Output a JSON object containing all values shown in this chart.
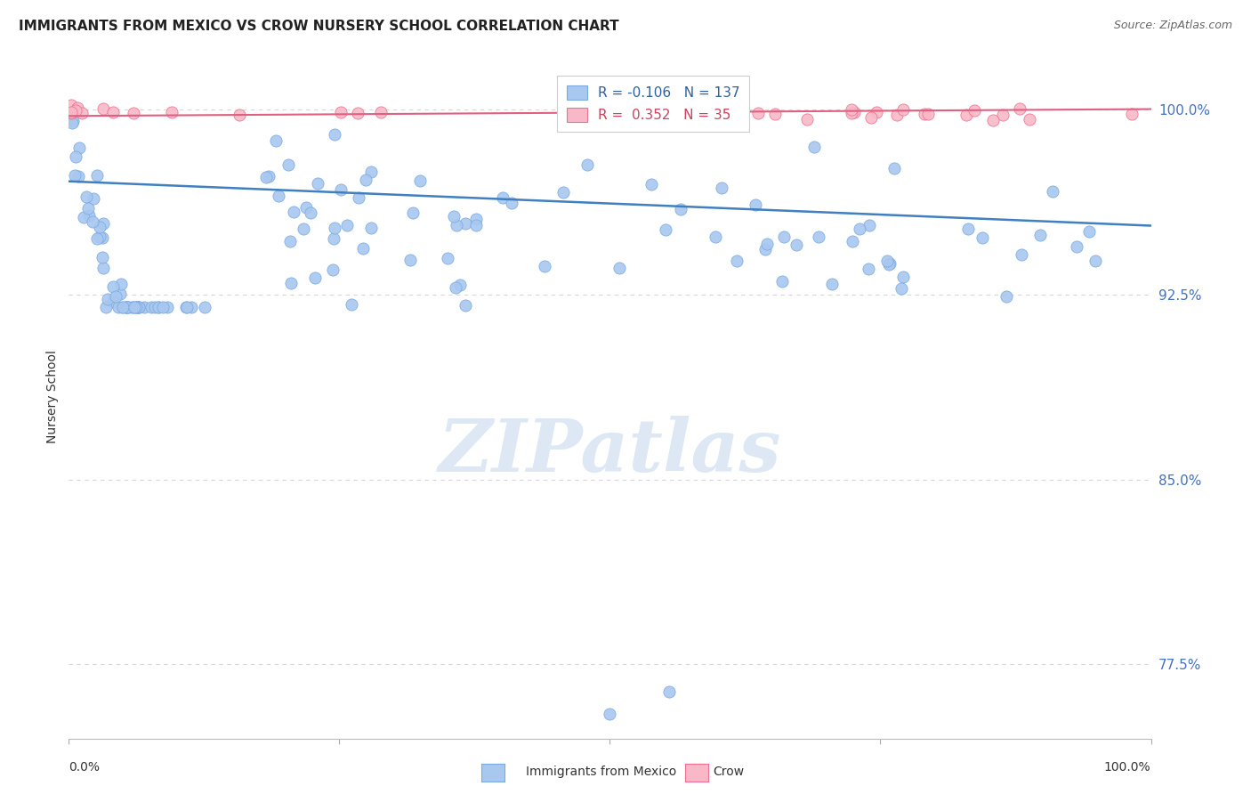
{
  "title": "IMMIGRANTS FROM MEXICO VS CROW NURSERY SCHOOL CORRELATION CHART",
  "source": "Source: ZipAtlas.com",
  "ylabel": "Nursery School",
  "legend_blue_R": "-0.106",
  "legend_blue_N": "137",
  "legend_pink_R": "0.352",
  "legend_pink_N": "35",
  "legend_blue_label": "Immigrants from Mexico",
  "legend_pink_label": "Crow",
  "ytick_labels": [
    "100.0%",
    "92.5%",
    "85.0%",
    "77.5%"
  ],
  "ytick_values": [
    1.0,
    0.925,
    0.85,
    0.775
  ],
  "xlim": [
    0.0,
    1.0
  ],
  "ylim": [
    0.745,
    1.022
  ],
  "blue_scatter_color": "#a8c8f0",
  "blue_scatter_edge": "#7aaae0",
  "pink_scatter_color": "#f8b8c8",
  "pink_scatter_edge": "#f07090",
  "blue_line_color": "#4080c0",
  "pink_line_color": "#e06080",
  "blue_trend_y_start": 0.971,
  "blue_trend_y_end": 0.953,
  "pink_trend_y_start": 0.9975,
  "pink_trend_y_end": 1.0003,
  "grid_color": "#cccccc",
  "watermark_color": "#dde8f4",
  "background_color": "#ffffff",
  "ytick_color": "#4472c4",
  "xtick_color": "#333333"
}
